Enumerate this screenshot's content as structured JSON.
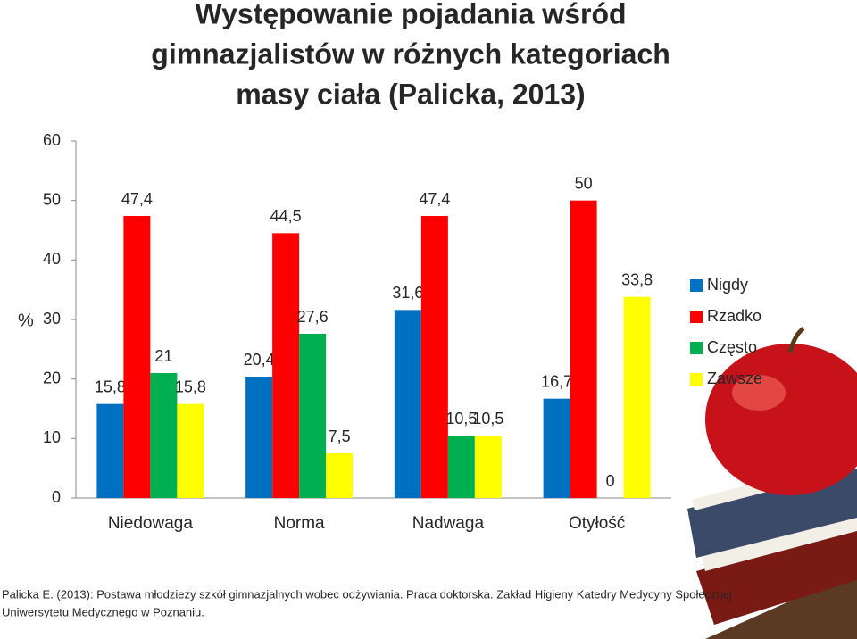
{
  "chart_data": {
    "type": "bar",
    "title": [
      "Występowanie pojadania wśród",
      "gimnazjalistów w różnych kategoriach",
      "masy ciała (Palicka, 2013)"
    ],
    "y_label": "%",
    "categories": [
      "Niedowaga",
      "Norma",
      "Nadwaga",
      "Otyłość"
    ],
    "series": [
      {
        "name": "Nigdy",
        "color": "#0070c0",
        "values": [
          15.8,
          20.4,
          31.6,
          16.7
        ],
        "value_labels": [
          "15,8",
          "20,4",
          "31,6",
          "16,7"
        ]
      },
      {
        "name": "Rzadko",
        "color": "#ff0000",
        "values": [
          47.4,
          44.5,
          47.4,
          50
        ],
        "value_labels": [
          "47,4",
          "44,5",
          "47,4",
          "50"
        ]
      },
      {
        "name": "Często",
        "color": "#00b050",
        "values": [
          21,
          27.6,
          10.5,
          0
        ],
        "value_labels": [
          "21",
          "27,6",
          "10,5",
          "0"
        ]
      },
      {
        "name": "Zawsze",
        "color": "#ffff00",
        "values": [
          15.8,
          7.5,
          10.5,
          33.8
        ],
        "value_labels": [
          "15,8",
          "7,5",
          "10,5",
          "33,8"
        ]
      }
    ],
    "ylim": [
      0,
      60
    ],
    "yticks": [
      0,
      10,
      20,
      30,
      40,
      50,
      60
    ],
    "legend": "right",
    "source": [
      "Palicka E. (2013): Postawa młodzieży szkół gimnazjalnych wobec odżywiania. Praca doktorska. Zakład Higieny Katedry Medycyny Społecznej",
      "Uniwersytetu Medycznego w Poznaniu."
    ]
  }
}
